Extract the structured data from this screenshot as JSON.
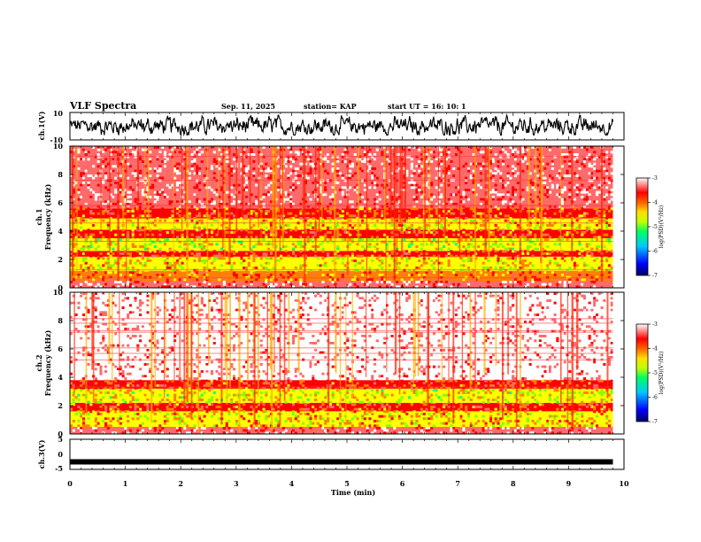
{
  "header": {
    "title": "VLF Spectra",
    "date": "Sep. 11, 2025",
    "station": "station= KAP",
    "start": "start  UT =   16: 10: 1"
  },
  "chart_data": [
    {
      "name": "ch1-waveform",
      "type": "line",
      "ylabel": "ch.1(V)",
      "ylim": [
        -10,
        10
      ],
      "yticks": [
        "10",
        "-10"
      ],
      "xlim": [
        0,
        10
      ],
      "x_extent": [
        0,
        9.8
      ],
      "description_series": "noisy broadband waveform centered near 0 V, swinging roughly between -6 and +8 V"
    },
    {
      "name": "ch1-spectrogram",
      "type": "heatmap",
      "ylabel": "ch.1\nFrequency  (kHz)",
      "ylim": [
        0,
        10
      ],
      "yticks": [
        "0",
        "2",
        "4",
        "6",
        "8",
        "10"
      ],
      "xlim": [
        0,
        10
      ],
      "x_extent": [
        0,
        9.8
      ],
      "bands_khz": [
        {
          "from": 0,
          "to": 0.5,
          "level": -3.3
        },
        {
          "from": 0.5,
          "to": 1.2,
          "level": -4.2
        },
        {
          "from": 1.2,
          "to": 2.2,
          "level": -4.7
        },
        {
          "from": 2.2,
          "to": 2.6,
          "level": -4.1
        },
        {
          "from": 2.6,
          "to": 3.5,
          "level": -4.9
        },
        {
          "from": 3.5,
          "to": 4.1,
          "level": -4.1
        },
        {
          "from": 4.1,
          "to": 4.9,
          "level": -4.6
        },
        {
          "from": 4.9,
          "to": 5.6,
          "level": -4.1
        },
        {
          "from": 5.6,
          "to": 10,
          "level": -3.4
        }
      ],
      "colorbar": {
        "label": "log(PSD)(V²/Hz)",
        "range": [
          -7,
          -3
        ],
        "ticks": [
          "-3",
          "-4",
          "-5",
          "-6",
          "-7"
        ]
      }
    },
    {
      "name": "ch2-spectrogram",
      "type": "heatmap",
      "ylabel": "ch.2\nFrequency  (kHz)",
      "ylim": [
        0,
        10
      ],
      "yticks": [
        "0",
        "2",
        "4",
        "6",
        "8",
        "10"
      ],
      "xlim": [
        0,
        10
      ],
      "x_extent": [
        0,
        9.8
      ],
      "bands_khz": [
        {
          "from": 0,
          "to": 0.5,
          "level": -3.4
        },
        {
          "from": 0.5,
          "to": 1.6,
          "level": -4.6
        },
        {
          "from": 1.6,
          "to": 2.2,
          "level": -4.0
        },
        {
          "from": 2.2,
          "to": 3.2,
          "level": -4.8
        },
        {
          "from": 3.2,
          "to": 3.8,
          "level": -4.0
        },
        {
          "from": 3.8,
          "to": 10,
          "level": -3.1
        }
      ],
      "colorbar": {
        "label": "log(PSD)(V²/Hz)",
        "range": [
          -7,
          -3
        ],
        "ticks": [
          "-3",
          "-4",
          "-5",
          "-6",
          "-7"
        ]
      }
    },
    {
      "name": "ch3-waveform",
      "type": "line",
      "ylabel": "ch.3(V)",
      "ylim": [
        -5,
        5
      ],
      "yticks": [
        "5",
        "0",
        "-5"
      ],
      "xlim": [
        0,
        10
      ],
      "x_extent": [
        0,
        9.8
      ],
      "center_v": -2.5,
      "xlabel": "Time  (min)",
      "xticks": [
        "0",
        "1",
        "2",
        "3",
        "4",
        "5",
        "6",
        "7",
        "8",
        "9",
        "10"
      ]
    }
  ],
  "colors": {
    "scale": [
      "#000080",
      "#0000ff",
      "#00c8ff",
      "#00ff80",
      "#80ff00",
      "#ffff00",
      "#ff8000",
      "#ff0000",
      "#ff6a6a",
      "#ffffff"
    ]
  }
}
